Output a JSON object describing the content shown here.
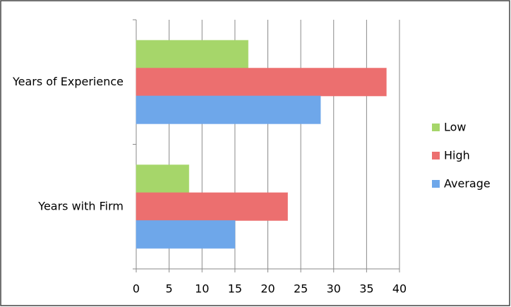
{
  "chart_data": {
    "type": "bar",
    "orientation": "horizontal",
    "categories": [
      "Years of Experience",
      "Years with Firm"
    ],
    "series": [
      {
        "name": "Low",
        "color": "#a6d66a",
        "values": [
          17,
          8
        ]
      },
      {
        "name": "High",
        "color": "#ec6f6f",
        "values": [
          38,
          23
        ]
      },
      {
        "name": "Average",
        "color": "#6ea7ea",
        "values": [
          28,
          15
        ]
      }
    ],
    "xlim": [
      0,
      40
    ],
    "xticks": [
      0,
      5,
      10,
      15,
      20,
      25,
      30,
      35,
      40
    ],
    "grid": true,
    "legend": "right"
  }
}
